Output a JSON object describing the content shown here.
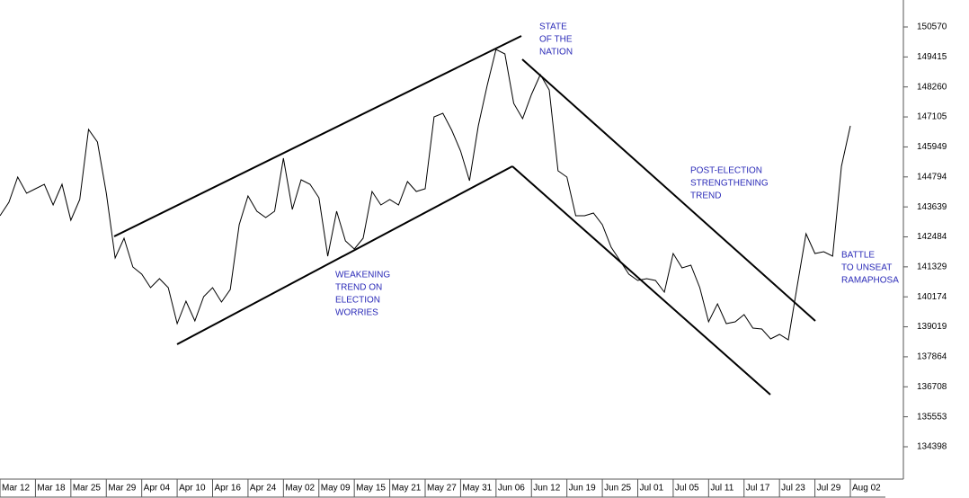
{
  "chart_data": {
    "type": "line",
    "categories": [
      "Mar 12",
      null,
      null,
      null,
      "Mar 18",
      null,
      null,
      null,
      "Mar 25",
      null,
      null,
      null,
      "Mar 29",
      null,
      null,
      null,
      "Apr 04",
      null,
      null,
      null,
      "Apr 10",
      null,
      null,
      null,
      "Apr 16",
      null,
      null,
      null,
      "Apr 24",
      null,
      null,
      null,
      "May 02",
      null,
      null,
      null,
      "May 09",
      null,
      null,
      null,
      "May 15",
      null,
      null,
      null,
      "May 21",
      null,
      null,
      null,
      "May 27",
      null,
      null,
      null,
      "May 31",
      null,
      null,
      null,
      "Jun 06",
      null,
      null,
      null,
      "Jun 12",
      null,
      null,
      null,
      "Jun 19",
      null,
      null,
      null,
      "Jun 25",
      null,
      null,
      null,
      "Jul 01",
      null,
      null,
      null,
      "Jul 05",
      null,
      null,
      null,
      "Jul 11",
      null,
      null,
      null,
      "Jul 17",
      null,
      null,
      null,
      "Jul 23",
      null,
      null,
      null,
      "Jul 29",
      null,
      null,
      null,
      "Aug 02"
    ],
    "values": [
      143298,
      143817,
      144787,
      144163,
      144337,
      144510,
      143713,
      144510,
      143125,
      143921,
      146622,
      146137,
      144163,
      141670,
      142432,
      141324,
      141047,
      140527,
      140874,
      140527,
      139142,
      140008,
      139246,
      140181,
      140527,
      139973,
      140458,
      142951,
      144060,
      143471,
      143228,
      143471,
      145514,
      143540,
      144683,
      144510,
      143990,
      141739,
      143471,
      142328,
      142016,
      142432,
      144233,
      143713,
      143921,
      143713,
      144614,
      144233,
      144337,
      147107,
      147246,
      146588,
      145791,
      144648,
      146761,
      148319,
      149704,
      149531,
      147626,
      147038,
      147973,
      148735,
      148146,
      145029,
      144787,
      143298,
      143298,
      143402,
      142951,
      142086,
      141566,
      141047,
      140804,
      140874,
      140804,
      140354,
      141843,
      141289,
      141393,
      140527,
      139211,
      139904,
      139142,
      139211,
      139488,
      138969,
      138934,
      138553,
      138727,
      138519,
      140597,
      142605,
      141843,
      141912,
      141739,
      145202,
      146761
    ],
    "color": "#000000",
    "ylim": [
      133186,
      151609
    ],
    "yticks": [
      150570,
      149415,
      148260,
      147105,
      145949,
      144794,
      143639,
      142484,
      141329,
      140174,
      139019,
      137864,
      136708,
      135553,
      134398
    ],
    "annotations": [
      {
        "lines": [
          "STATE",
          "OF THE",
          "NATION"
        ]
      },
      {
        "lines": [
          "WEAKENING",
          "TREND ON",
          "ELECTION",
          "WORRIES"
        ]
      },
      {
        "lines": [
          "POST-ELECTION",
          "STRENGTHENING",
          "TREND"
        ]
      },
      {
        "lines": [
          "BATTLE",
          "TO UNSEAT",
          "RAMAPHOSA"
        ]
      }
    ]
  }
}
